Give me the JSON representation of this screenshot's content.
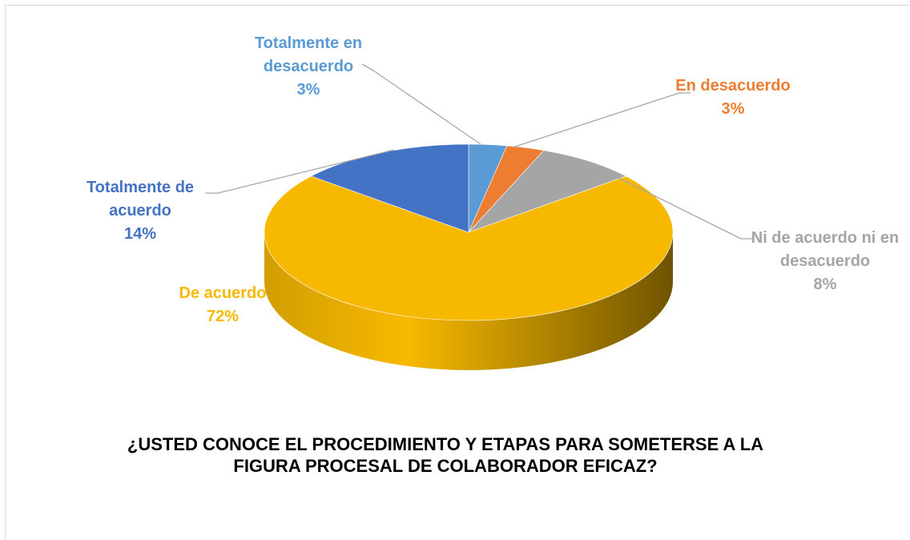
{
  "chart_data": {
    "type": "pie",
    "title": "¿USTED CONOCE EL PROCEDIMIENTO Y ETAPAS PARA SOMETERSE A LA FIGURA PROCESAL DE COLABORADOR EFICAZ?",
    "categories": [
      "Totalmente en desacuerdo",
      "En desacuerdo",
      "Ni de acuerdo ni en desacuerdo",
      "De acuerdo",
      "Totalmente de acuerdo"
    ],
    "values": [
      3,
      3,
      8,
      72,
      14
    ],
    "value_labels": [
      "3%",
      "3%",
      "8%",
      "72%",
      "14%"
    ],
    "colors": [
      "#5b9bd5",
      "#ed7d31",
      "#a5a5a5",
      "#f7b900",
      "#4472c4"
    ]
  }
}
